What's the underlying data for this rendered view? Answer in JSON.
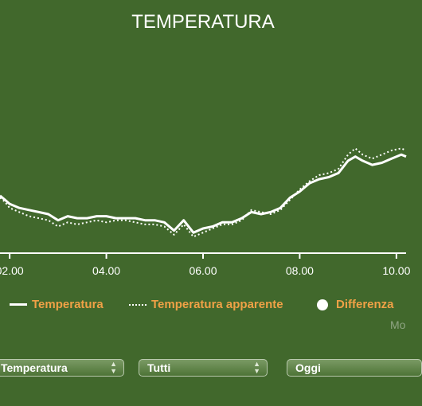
{
  "chart_data": {
    "type": "line",
    "title": "TEMPERATURA",
    "x_unit": "hour",
    "xlim": [
      1.8,
      10.2
    ],
    "ylim": [
      0,
      100
    ],
    "grid": false,
    "x_ticks": [
      {
        "value": 2,
        "label": "02.00"
      },
      {
        "value": 4,
        "label": "04.00"
      },
      {
        "value": 6,
        "label": "06.00"
      },
      {
        "value": 8,
        "label": "08.00"
      },
      {
        "value": 10,
        "label": "10.00"
      }
    ],
    "legend_position": "bottom",
    "series": [
      {
        "name": "Temperatura",
        "style": "solid",
        "x": [
          1.8,
          1.9,
          2.0,
          2.2,
          2.4,
          2.6,
          2.8,
          3.0,
          3.2,
          3.4,
          3.6,
          3.8,
          4.0,
          4.2,
          4.4,
          4.6,
          4.8,
          5.0,
          5.2,
          5.4,
          5.6,
          5.8,
          6.0,
          6.2,
          6.4,
          6.6,
          6.8,
          7.0,
          7.2,
          7.4,
          7.6,
          7.8,
          8.0,
          8.2,
          8.4,
          8.6,
          8.8,
          9.0,
          9.15,
          9.3,
          9.5,
          9.7,
          9.9,
          10.1,
          10.2
        ],
        "y": [
          28,
          26,
          24,
          22,
          21,
          20,
          19,
          16,
          18,
          17,
          17,
          18,
          18,
          17,
          17,
          17,
          16,
          16,
          15,
          11,
          16,
          10,
          12,
          13,
          15,
          15,
          17,
          20,
          19,
          20,
          22,
          27,
          30,
          34,
          36,
          37,
          39,
          45,
          47,
          45,
          43,
          44,
          46,
          48,
          47
        ]
      },
      {
        "name": "Temperatura apparente",
        "style": "dotted",
        "x": [
          1.8,
          1.9,
          2.0,
          2.2,
          2.4,
          2.6,
          2.8,
          3.0,
          3.2,
          3.4,
          3.6,
          3.8,
          4.0,
          4.2,
          4.4,
          4.6,
          4.8,
          5.0,
          5.2,
          5.4,
          5.6,
          5.8,
          6.0,
          6.2,
          6.4,
          6.6,
          6.8,
          7.0,
          7.2,
          7.4,
          7.6,
          7.8,
          8.0,
          8.2,
          8.4,
          8.6,
          8.8,
          9.0,
          9.15,
          9.3,
          9.5,
          9.7,
          9.9,
          10.1,
          10.2
        ],
        "y": [
          27,
          25,
          22,
          20,
          18,
          17,
          16,
          13,
          15,
          14,
          15,
          16,
          15,
          16,
          16,
          15,
          14,
          14,
          13,
          9,
          14,
          8,
          10,
          12,
          14,
          14,
          16,
          21,
          20,
          19,
          21,
          26,
          31,
          35,
          38,
          39,
          41,
          48,
          51,
          48,
          46,
          48,
          50,
          51,
          50
        ]
      }
    ],
    "legend_extra": "Differenza"
  },
  "more_label": "Mo",
  "controls": {
    "select1": "Temperatura",
    "select2": "Tutti",
    "select3": "Oggi"
  },
  "colors": {
    "background": "#41682c",
    "line": "#ffffff",
    "legend_text": "#f0a146"
  }
}
